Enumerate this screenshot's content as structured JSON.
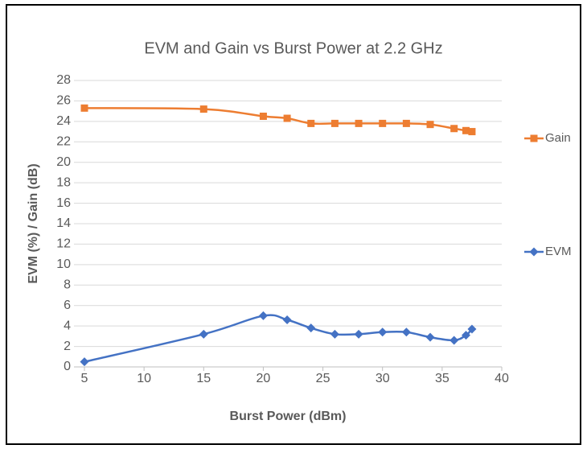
{
  "chart_data": {
    "type": "line",
    "title": "EVM and Gain vs Burst Power at 2.2 GHz",
    "x_label": "Burst Power (dBm)",
    "y_label": "EVM (%) / Gain (dB)",
    "x": [
      5,
      15,
      20,
      22,
      24,
      26,
      28,
      30,
      32,
      34,
      36,
      37,
      37.5
    ],
    "series": [
      {
        "name": "Gain",
        "color": "#ED7D31",
        "marker": "square",
        "values": [
          25.3,
          25.2,
          24.5,
          24.3,
          23.8,
          23.8,
          23.8,
          23.8,
          23.8,
          23.7,
          23.3,
          23.1,
          23.0
        ]
      },
      {
        "name": "EVM",
        "color": "#4472C4",
        "marker": "diamond",
        "values": [
          0.5,
          3.2,
          5.0,
          4.6,
          3.8,
          3.2,
          3.2,
          3.4,
          3.4,
          2.9,
          2.6,
          3.1,
          3.7
        ]
      }
    ],
    "xlim": [
      5,
      40
    ],
    "xticks": [
      5,
      10,
      15,
      20,
      25,
      30,
      35,
      40
    ],
    "ylim": [
      0,
      28
    ],
    "yticks": [
      0,
      2,
      4,
      6,
      8,
      10,
      12,
      14,
      16,
      18,
      20,
      22,
      24,
      26,
      28
    ],
    "grid": true,
    "smooth": true,
    "legend": "right"
  }
}
